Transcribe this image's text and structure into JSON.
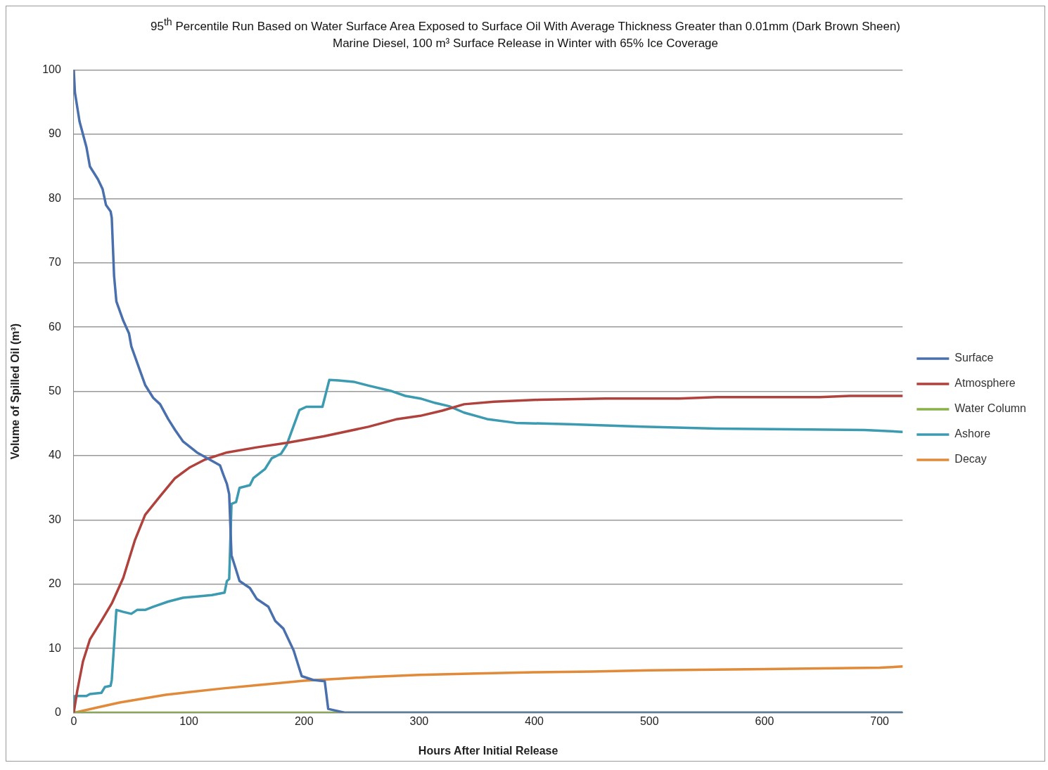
{
  "chart_data": {
    "type": "line",
    "title": "95$^{th}$ Percentile Run Based on Water Surface Area Exposed to Surface Oil With Average Thickness Greater than 0.01mm (Dark Brown Sheen)",
    "subtitle": "Marine Diesel, 100 m³ Surface Release in Winter with 65% Ice Coverage",
    "xlabel": "Hours After Initial Release",
    "ylabel": "Volume of Spilled Oil (m³)",
    "xlim": [
      0,
      720
    ],
    "xticks": [
      0,
      100,
      200,
      300,
      400,
      500,
      600,
      700
    ],
    "ylim": [
      0,
      100
    ],
    "yticks": [
      0,
      10,
      20,
      30,
      40,
      50,
      60,
      70,
      80,
      90,
      100
    ],
    "grid": "y",
    "legend": "right",
    "marker": "none",
    "line_style": "solid",
    "series": [
      {
        "name": "Surface",
        "color": "#4a6fad",
        "x": [
          0,
          1,
          5,
          11,
          14,
          21,
          25,
          28,
          32,
          33,
          35,
          37,
          43,
          48,
          50,
          56,
          62,
          69,
          75,
          82,
          88,
          95,
          107,
          118,
          127,
          130,
          133,
          135,
          137,
          140,
          144,
          153,
          159,
          169,
          175,
          182,
          191,
          198,
          208,
          218,
          221,
          236,
          720
        ],
        "values": [
          100,
          96.5,
          92,
          88,
          85,
          83,
          81.5,
          79,
          78,
          77,
          68,
          64,
          61,
          59,
          57,
          54,
          51,
          49,
          48,
          45.7,
          44,
          42.2,
          40.5,
          39.4,
          38.5,
          37,
          35.6,
          34,
          24.5,
          22.8,
          20.5,
          19.4,
          17.7,
          16.5,
          14.3,
          13.1,
          9.7,
          5.7,
          5.1,
          4.9,
          0.6,
          0,
          0
        ]
      },
      {
        "name": "Atmosphere",
        "color": "#b0423e",
        "x": [
          0,
          3,
          8,
          14,
          24,
          33,
          43,
          53,
          62,
          75,
          88,
          101,
          114,
          133,
          159,
          185,
          217,
          256,
          281,
          301,
          320,
          339,
          365,
          404,
          462,
          526,
          558,
          648,
          674,
          720
        ],
        "values": [
          0,
          3.4,
          8,
          11.4,
          14.3,
          17,
          21,
          26.8,
          30.8,
          33.7,
          36.5,
          38.2,
          39.4,
          40.5,
          41.3,
          42,
          43,
          44.5,
          45.7,
          46.2,
          47,
          48,
          48.4,
          48.7,
          48.9,
          48.9,
          49.1,
          49.1,
          49.3,
          49.3
        ]
      },
      {
        "name": "Water Column",
        "color": "#8ab04a",
        "x": [
          0,
          720
        ],
        "values": [
          0,
          0
        ]
      },
      {
        "name": "Ashore",
        "color": "#3c9bb0",
        "x": [
          0,
          1,
          11,
          14,
          24,
          27,
          32,
          33,
          37,
          43,
          50,
          55,
          62,
          69,
          82,
          95,
          107,
          120,
          131,
          133,
          135,
          137,
          141,
          144,
          153,
          156,
          166,
          172,
          180,
          185,
          196,
          202,
          216,
          222,
          230,
          243,
          256,
          275,
          288,
          301,
          314,
          326,
          339,
          359,
          384,
          430,
          462,
          494,
          558,
          623,
          687,
          720
        ],
        "values": [
          0,
          2.6,
          2.6,
          2.9,
          3.1,
          4,
          4.2,
          5.1,
          16,
          15.7,
          15.4,
          16,
          16,
          16.5,
          17.3,
          17.9,
          18.1,
          18.3,
          18.7,
          20.5,
          20.8,
          32.5,
          32.8,
          35,
          35.4,
          36.5,
          37.9,
          39.6,
          40.3,
          41.7,
          47.1,
          47.6,
          47.6,
          51.8,
          51.7,
          51.5,
          50.9,
          50.1,
          49.3,
          48.9,
          48.2,
          47.7,
          46.7,
          45.7,
          45.1,
          44.9,
          44.7,
          44.5,
          44.2,
          44.1,
          44,
          43.7
        ]
      },
      {
        "name": "Decay",
        "color": "#e08a3a",
        "x": [
          0,
          20,
          40,
          60,
          80,
          100,
          130,
          160,
          200,
          230,
          260,
          300,
          350,
          400,
          450,
          500,
          600,
          700,
          720
        ],
        "values": [
          0,
          0.8,
          1.6,
          2.2,
          2.8,
          3.2,
          3.8,
          4.3,
          5,
          5.3,
          5.6,
          5.9,
          6.1,
          6.3,
          6.4,
          6.6,
          6.8,
          7,
          7.2
        ]
      }
    ]
  }
}
